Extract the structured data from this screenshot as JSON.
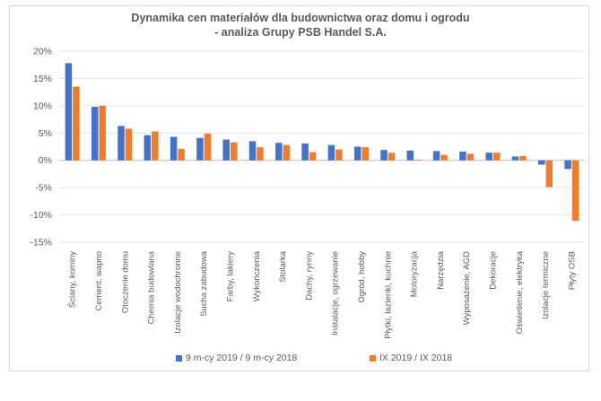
{
  "chart_data": {
    "type": "bar",
    "title": [
      "Dynamika cen materiałów dla budownictwa oraz domu i ogrodu",
      "- analiza Grupy PSB Handel S.A."
    ],
    "categories": [
      "Ściany, kominy",
      "Cement, wapno",
      "Otoczenie domu",
      "Chemia budowlana",
      "Izolacje wodochronne",
      "Sucha zabudowa",
      "Farby, lakiery",
      "Wykończenia",
      "Stolarka",
      "Dachy, rynny",
      "Instalacje, ogrzewanie",
      "Ogród, hobby",
      "Płytki, łazienki, kuchnie",
      "Motoryzacja",
      "Narzędzia",
      "Wyposażenie, AGD",
      "Dekoracje",
      "Oświetlenie, elektryka",
      "Izolacje termiczne",
      "Płyty OSB"
    ],
    "series": [
      {
        "name": "9 m-cy 2019 / 9 m-cy 2018",
        "color": "#4472c4",
        "values": [
          17.8,
          9.8,
          6.3,
          4.6,
          4.3,
          4.1,
          3.8,
          3.5,
          3.2,
          3.1,
          2.8,
          2.5,
          1.9,
          1.8,
          1.7,
          1.6,
          1.4,
          0.7,
          -0.8,
          -1.6
        ]
      },
      {
        "name": "IX 2019 / IX 2018",
        "color": "#ed7d31",
        "values": [
          13.5,
          10.0,
          5.8,
          5.3,
          2.1,
          4.9,
          3.3,
          2.4,
          2.8,
          1.5,
          2.0,
          2.4,
          1.4,
          0.1,
          1.0,
          1.2,
          1.4,
          0.8,
          -4.9,
          -11.1
        ]
      }
    ],
    "yticks": [
      "20%",
      "15%",
      "10%",
      "5%",
      "0%",
      "-5%",
      "-10%",
      "-15%"
    ],
    "ylim": [
      -15,
      20
    ],
    "grid": true,
    "legend": "bottom"
  }
}
